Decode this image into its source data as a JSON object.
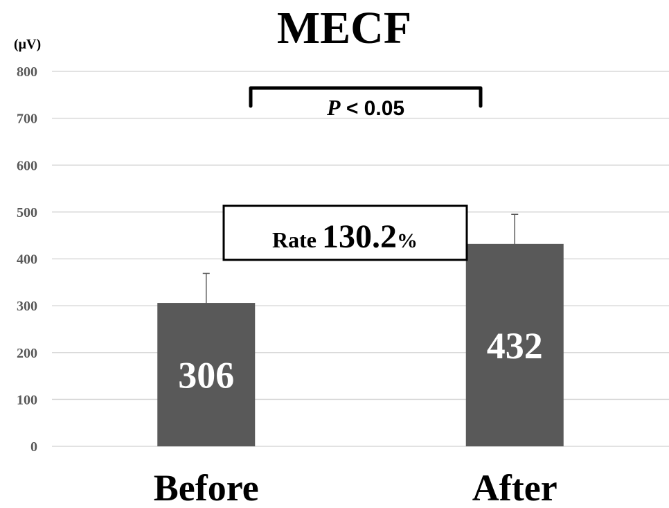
{
  "chart_data": {
    "type": "bar",
    "title": "MECF",
    "y_unit": "(μV)",
    "categories": [
      "Before",
      "After"
    ],
    "series": [
      {
        "values": [
          306,
          432
        ],
        "error": [
          63,
          63
        ],
        "color": "#595959"
      }
    ],
    "data_labels": [
      "306",
      "432"
    ],
    "ylim": [
      0,
      800
    ],
    "yticks": [
      "0",
      "100",
      "200",
      "300",
      "400",
      "500",
      "600",
      "700",
      "800"
    ],
    "grid": true,
    "annotations": {
      "significance": {
        "p_symbol": "P",
        "p_text": " < 0.05"
      },
      "rate": {
        "label": "Rate ",
        "value": "130.2",
        "unit": "%"
      }
    }
  }
}
